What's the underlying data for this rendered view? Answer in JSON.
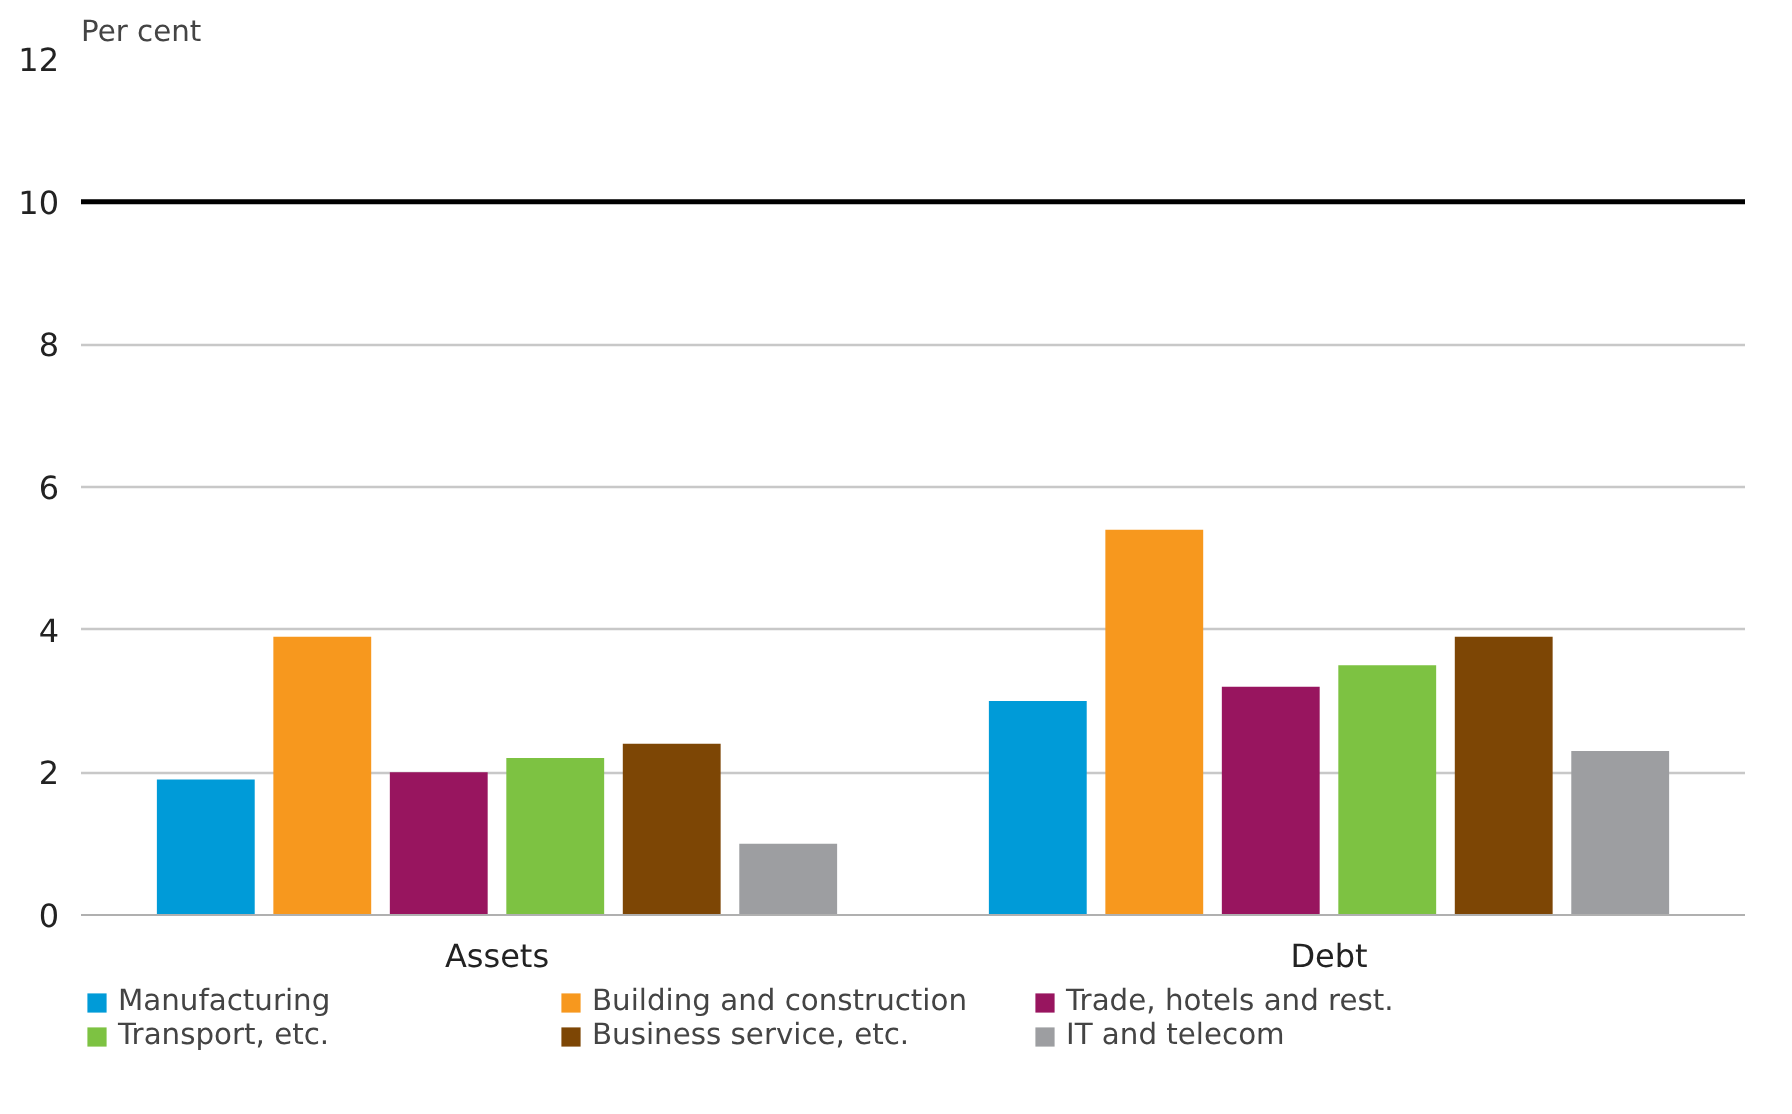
{
  "chart_data": {
    "type": "bar",
    "ylabel": "Per cent",
    "categories": [
      "Assets",
      "Debt"
    ],
    "series": [
      {
        "name": "Manufacturing",
        "color": "#009bd8",
        "values": [
          1.9,
          3.0
        ]
      },
      {
        "name": "Building and construction",
        "color": "#f7981e",
        "values": [
          3.9,
          5.4
        ]
      },
      {
        "name": "Trade, hotels and rest.",
        "color": "#98155f",
        "values": [
          2.0,
          3.2
        ]
      },
      {
        "name": "Transport, etc.",
        "color": "#7dc242",
        "values": [
          2.2,
          3.5
        ]
      },
      {
        "name": "Business service, etc.",
        "color": "#7d4605",
        "values": [
          2.4,
          3.9
        ]
      },
      {
        "name": "IT and telecom",
        "color": "#9d9ea1",
        "values": [
          1.0,
          2.3
        ]
      }
    ],
    "ylim": [
      0,
      12
    ],
    "yticks": [
      0,
      2,
      4,
      6,
      8,
      10,
      12
    ],
    "grid": "y",
    "legend": "bottom",
    "ref_lines": [
      {
        "axis": "y",
        "value": 10,
        "color": "#000000"
      }
    ]
  }
}
